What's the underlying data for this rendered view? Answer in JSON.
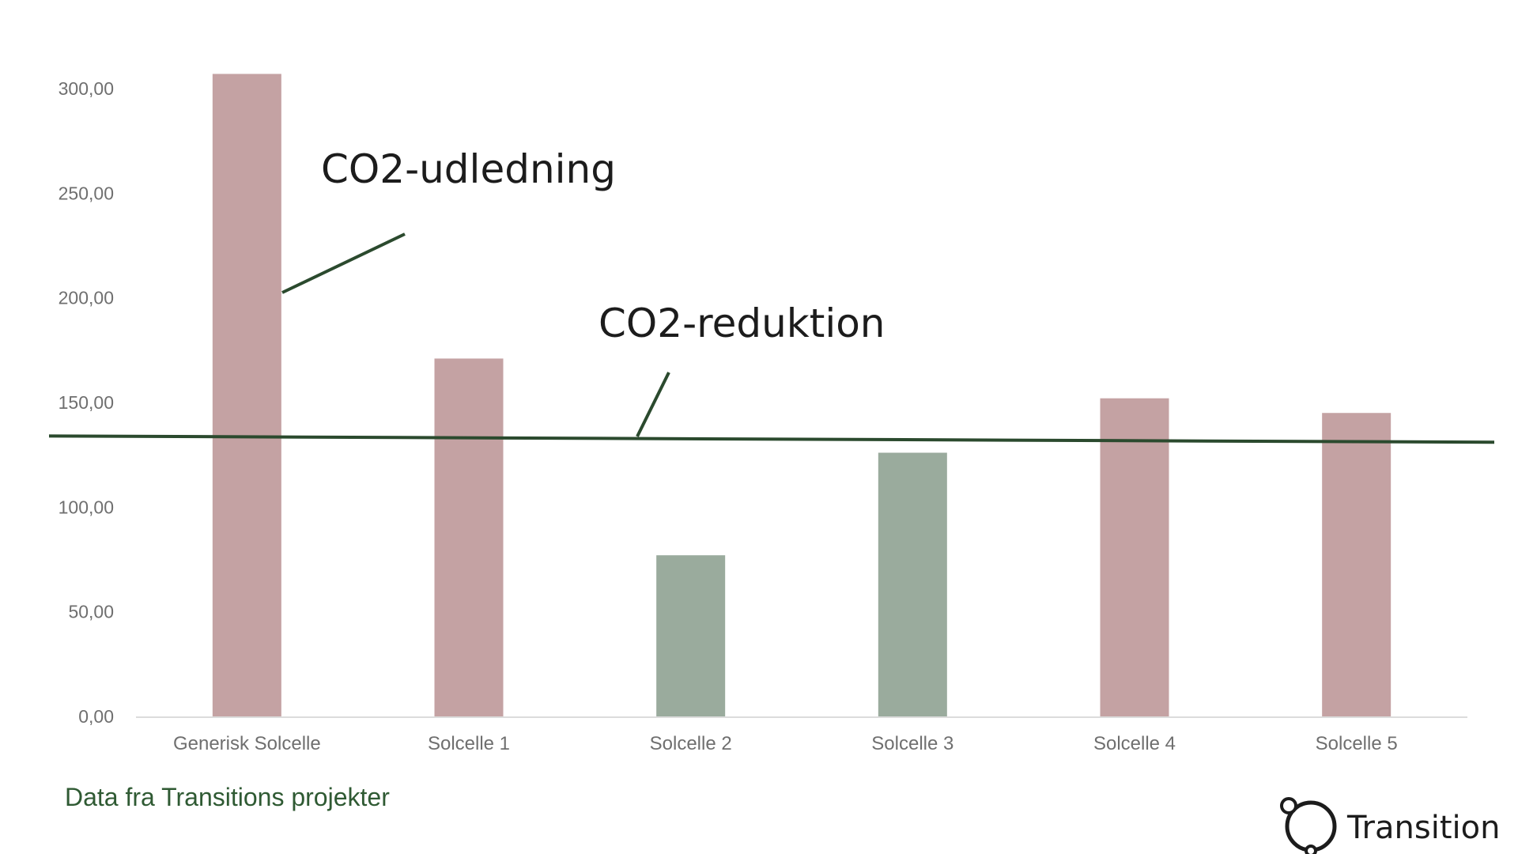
{
  "chart_data": {
    "type": "bar",
    "categories": [
      "Generisk Solcelle",
      "Solcelle 1",
      "Solcelle 2",
      "Solcelle 3",
      "Solcelle 4",
      "Solcelle 5"
    ],
    "values": [
      307,
      171,
      77,
      126,
      152,
      145
    ],
    "bar_colors": [
      "#c4a2a3",
      "#c4a2a3",
      "#9aab9d",
      "#9aab9d",
      "#c4a2a3",
      "#c4a2a3"
    ],
    "ylim": [
      0,
      300
    ],
    "yticks": [
      0,
      50,
      100,
      150,
      200,
      250,
      300
    ],
    "ytick_labels": [
      "0,00",
      "50,00",
      "100,00",
      "150,00",
      "200,00",
      "250,00",
      "300,00"
    ],
    "reference_line": {
      "start_value": 134,
      "end_value": 131,
      "color": "#2b4a2e"
    },
    "annotations": [
      {
        "text": "CO2-udledning",
        "points_to": "Generisk Solcelle"
      },
      {
        "text": "CO2-reduktion",
        "points_to": "reference line"
      }
    ],
    "grid": false,
    "title": "",
    "xlabel": "",
    "ylabel": ""
  },
  "footer": {
    "source_note": "Data fra Transitions projekter",
    "brand_name": "Transition",
    "brand_logo_icon": "transition-logo-icon"
  }
}
